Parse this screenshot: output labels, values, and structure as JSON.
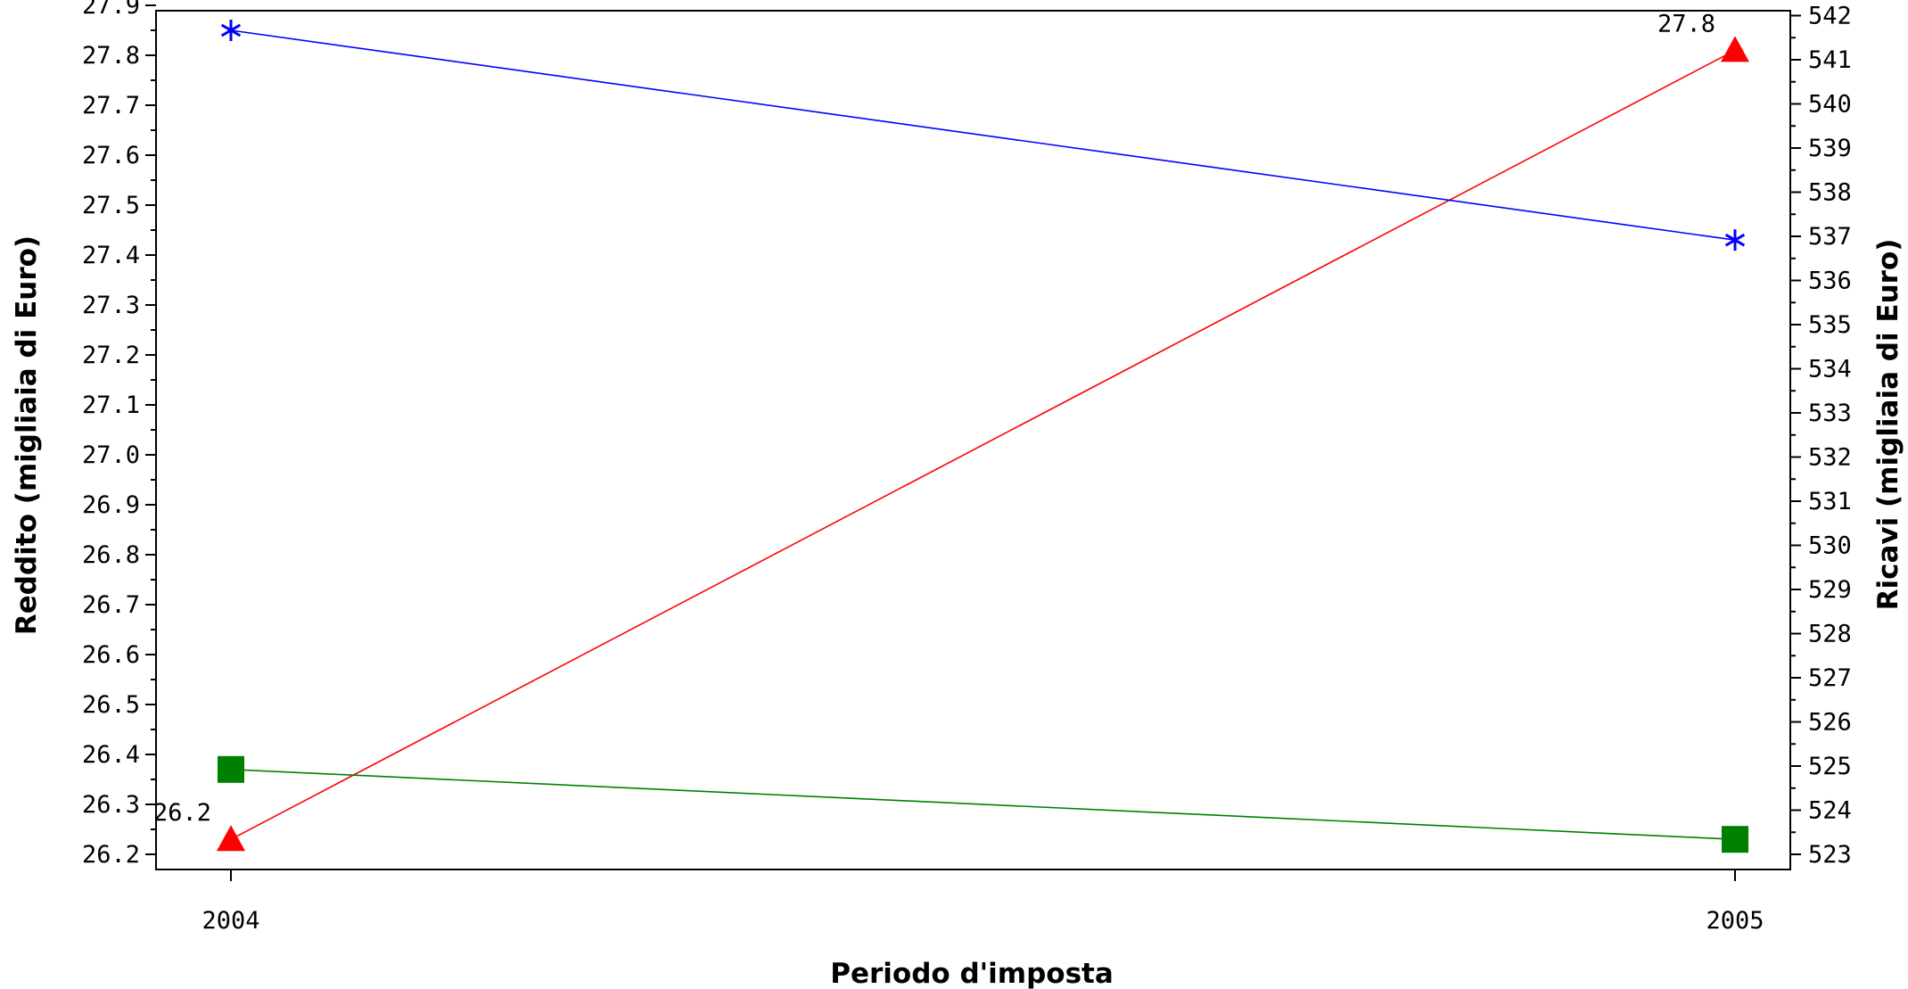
{
  "chart_data": {
    "type": "line",
    "title": "",
    "xlabel": "Periodo d'imposta",
    "ylabel_left": "Reddito (migliaia di Euro)",
    "ylabel_right": "Ricavi (migliaia di Euro)",
    "categories": [
      "2004",
      "2005"
    ],
    "y_left": {
      "range": [
        26.2,
        27.9
      ],
      "ticks": [
        "26.2",
        "26.3",
        "26.4",
        "26.5",
        "26.6",
        "26.7",
        "26.8",
        "26.9",
        "27.0",
        "27.1",
        "27.2",
        "27.3",
        "27.4",
        "27.5",
        "27.6",
        "27.7",
        "27.8",
        "27.9"
      ]
    },
    "y_right": {
      "range": [
        523,
        542
      ],
      "ticks": [
        "523",
        "524",
        "525",
        "526",
        "527",
        "528",
        "529",
        "530",
        "531",
        "532",
        "533",
        "534",
        "535",
        "536",
        "537",
        "538",
        "539",
        "540",
        "541",
        "542"
      ]
    },
    "grid": false,
    "legend": "none",
    "series": [
      {
        "axis": "left",
        "color": "#ff0000",
        "marker": "triangle",
        "values": [
          26.23,
          27.81
        ],
        "data_labels": [
          "26.2",
          "27.8"
        ]
      },
      {
        "axis": "left",
        "color": "#0000ff",
        "marker": "asterisk",
        "values": [
          27.85,
          27.43
        ]
      },
      {
        "axis": "left",
        "color": "#008000",
        "marker": "square",
        "values": [
          26.37,
          26.23
        ]
      }
    ]
  }
}
